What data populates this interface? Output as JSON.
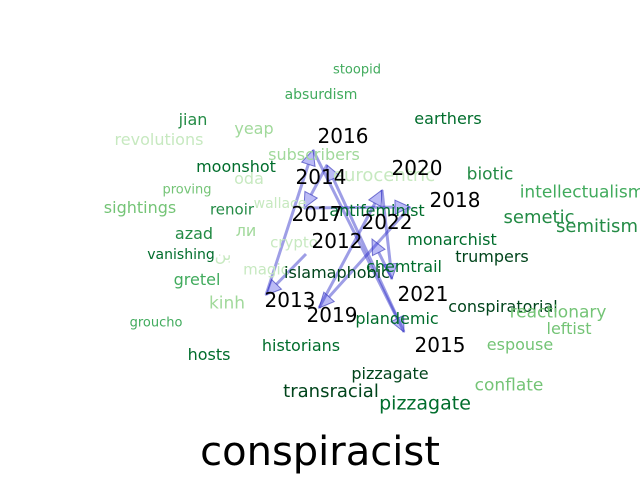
{
  "title": "conspiracist",
  "years": [
    "2012",
    "2013",
    "2014",
    "2015",
    "2016",
    "2017",
    "2018",
    "2019",
    "2020",
    "2021",
    "2022"
  ],
  "trajectory": [
    "2012",
    "2013",
    "2014",
    "2015",
    "2016",
    "2017",
    "2018",
    "2019",
    "2020",
    "2021",
    "2022"
  ],
  "neighbors": [
    {
      "text": "stoopid",
      "color": "#41ab5d"
    },
    {
      "text": "absurdism",
      "color": "#41ab5d"
    },
    {
      "text": "jian",
      "color": "#238b45"
    },
    {
      "text": "revolutions",
      "color": "#c7e9c0"
    },
    {
      "text": "yeap",
      "color": "#a1d99b"
    },
    {
      "text": "earthers",
      "color": "#006d2c"
    },
    {
      "text": "subscribers",
      "color": "#a1d99b"
    },
    {
      "text": "moonshot",
      "color": "#006d2c"
    },
    {
      "text": "eurocentric",
      "color": "#c7e9c0"
    },
    {
      "text": "biotic",
      "color": "#238b45"
    },
    {
      "text": "oda",
      "color": "#c7e9c0"
    },
    {
      "text": "proving",
      "color": "#74c476"
    },
    {
      "text": "intellectualism",
      "color": "#41ab5d"
    },
    {
      "text": "sightings",
      "color": "#74c476"
    },
    {
      "text": "renoir",
      "color": "#238b45"
    },
    {
      "text": "wallace",
      "color": "#c7e9c0"
    },
    {
      "text": "antifeminist",
      "color": "#006d2c"
    },
    {
      "text": "semetic",
      "color": "#238b45"
    },
    {
      "text": "semitism",
      "color": "#238b45"
    },
    {
      "text": "azad",
      "color": "#238b45"
    },
    {
      "text": "ли",
      "color": "#a1d99b"
    },
    {
      "text": "crypto",
      "color": "#c7e9c0"
    },
    {
      "text": "monarchist",
      "color": "#006d2c"
    },
    {
      "text": "vanishing",
      "color": "#006d2c"
    },
    {
      "text": "بن",
      "color": "#c7e9c0"
    },
    {
      "text": "trumpers",
      "color": "#00441b"
    },
    {
      "text": "magic",
      "color": "#c7e9c0"
    },
    {
      "text": "islamaphobic",
      "color": "#00441b"
    },
    {
      "text": "chemtrail",
      "color": "#006d2c"
    },
    {
      "text": "gretel",
      "color": "#41ab5d"
    },
    {
      "text": "kinh",
      "color": "#a1d99b"
    },
    {
      "text": "conspiratorial",
      "color": "#00441b"
    },
    {
      "text": "reactionary",
      "color": "#74c476"
    },
    {
      "text": "groucho",
      "color": "#41ab5d"
    },
    {
      "text": "plandemic",
      "color": "#006d2c"
    },
    {
      "text": "leftist",
      "color": "#74c476"
    },
    {
      "text": "historians",
      "color": "#006d2c"
    },
    {
      "text": "espouse",
      "color": "#74c476"
    },
    {
      "text": "hosts",
      "color": "#006d2c"
    },
    {
      "text": "pizzagate",
      "color": "#00441b"
    },
    {
      "text": "conflate",
      "color": "#74c476"
    },
    {
      "text": "transracial",
      "color": "#00441b"
    },
    {
      "text": "pizzagate",
      "color": "#006d2c"
    }
  ]
}
